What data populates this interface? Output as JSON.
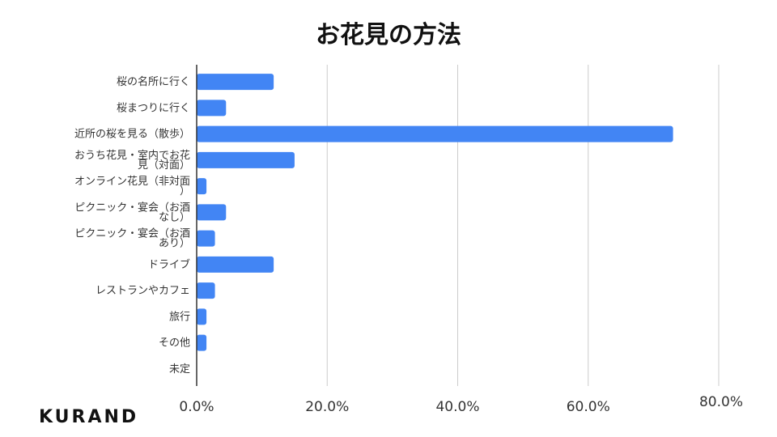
{
  "brand": "KURAND",
  "chart_data": {
    "type": "bar",
    "orientation": "horizontal",
    "title": "お花見の方法",
    "categories": [
      [
        "桜の名所に行く"
      ],
      [
        "桜まつりに行く"
      ],
      [
        "近所の桜を見る（散歩）"
      ],
      [
        "おうち花見・室内でお花",
        "見（対面）"
      ],
      [
        "オンライン花見（非対面",
        "）"
      ],
      [
        "ピクニック・宴会（お酒",
        "なし）"
      ],
      [
        "ピクニック・宴会（お酒",
        "あり）"
      ],
      [
        "ドライブ"
      ],
      [
        "レストランやカフェ"
      ],
      [
        "旅行"
      ],
      [
        "その他"
      ],
      [
        "未定"
      ]
    ],
    "values": [
      11.8,
      4.5,
      73.0,
      15.0,
      1.5,
      4.5,
      2.8,
      11.8,
      2.8,
      1.5,
      1.5,
      0.0
    ],
    "xlim": [
      0,
      80
    ],
    "xticks": [
      "0.0%",
      "20.0%",
      "40.0%",
      "60.0%",
      "80.0%"
    ],
    "bar_color": "#4285f4",
    "grid": true
  }
}
